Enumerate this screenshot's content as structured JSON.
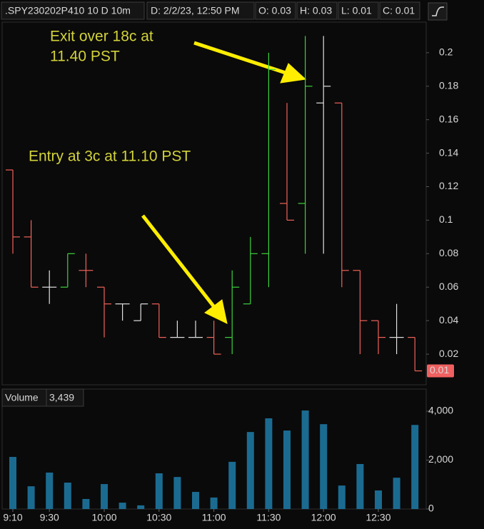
{
  "header": {
    "symbol": ".SPY230202P410 10 D 10m",
    "date": "D: 2/2/23, 12:50 PM",
    "open": "O: 0.03",
    "high": "H: 0.03",
    "low": "L: 0.01",
    "close": "C: 0.01"
  },
  "chart_data": [
    {
      "type": "ohlc",
      "annotations": [
        "Exit over 18c at",
        "11.40 PST",
        "Entry at 3c at 11.10 PST"
      ],
      "open": [
        0.13,
        0.09,
        0.06,
        0.06,
        0.07,
        0.06,
        0.05,
        0.04,
        0.05,
        0.03,
        0.03,
        0.03,
        0.03,
        0.05,
        0.08,
        0.11,
        0.11,
        0.17,
        0.17,
        0.07,
        0.04,
        0.03,
        0.03
      ],
      "high": [
        0.13,
        0.1,
        0.07,
        0.08,
        0.08,
        0.06,
        0.05,
        0.05,
        0.05,
        0.04,
        0.04,
        0.04,
        0.07,
        0.09,
        0.2,
        0.17,
        0.21,
        0.21,
        0.17,
        0.07,
        0.04,
        0.05,
        0.03
      ],
      "low": [
        0.08,
        0.06,
        0.05,
        0.06,
        0.06,
        0.03,
        0.04,
        0.04,
        0.03,
        0.03,
        0.03,
        0.02,
        0.02,
        0.05,
        0.06,
        0.1,
        0.08,
        0.08,
        0.06,
        0.02,
        0.02,
        0.02,
        0.01
      ],
      "close": [
        0.09,
        0.06,
        0.06,
        0.08,
        0.07,
        0.05,
        0.05,
        0.05,
        0.03,
        0.03,
        0.03,
        0.02,
        0.06,
        0.08,
        0.19,
        0.1,
        0.18,
        0.18,
        0.07,
        0.04,
        0.03,
        0.03,
        0.01
      ],
      "bar_colors": [
        "#f0625a",
        "#f0625a",
        "#e0e0e0",
        "#3cd23c",
        "#f0625a",
        "#f0625a",
        "#e0e0e0",
        "#e0e0e0",
        "#f0625a",
        "#e0e0e0",
        "#e0e0e0",
        "#f0625a",
        "#3cd23c",
        "#3cd23c",
        "#3cd23c",
        "#f0625a",
        "#3cd23c",
        "#e0e0e0",
        "#f0625a",
        "#f0625a",
        "#f0625a",
        "#e0e0e0",
        "#f0625a"
      ],
      "ylim": [
        0.0034,
        0.2187
      ],
      "yticks": [
        0.02,
        0.04,
        0.06,
        0.08,
        0.1,
        0.12,
        0.14,
        0.16,
        0.18,
        0.2
      ]
    },
    {
      "type": "bar",
      "title": "Volume",
      "current_label": "3,439",
      "color": "#1b6b91",
      "categories": [
        "9:10",
        null,
        "9:30",
        null,
        null,
        "10:00",
        null,
        null,
        "10:30",
        null,
        null,
        "11:00",
        null,
        null,
        "11:30",
        null,
        null,
        "12:00",
        null,
        null,
        "12:30",
        null,
        null
      ],
      "values": [
        2130,
        930,
        1490,
        1080,
        410,
        1020,
        260,
        150,
        1460,
        1310,
        700,
        470,
        1930,
        3150,
        3710,
        3210,
        4030,
        3470,
        960,
        1840,
        760,
        1280,
        3439
      ],
      "ylim": [
        0,
        4234
      ],
      "yticks": [
        0,
        {
          "value": 2000,
          "label": "2,000"
        },
        {
          "value": 4000,
          "label": "4,000"
        }
      ]
    }
  ]
}
